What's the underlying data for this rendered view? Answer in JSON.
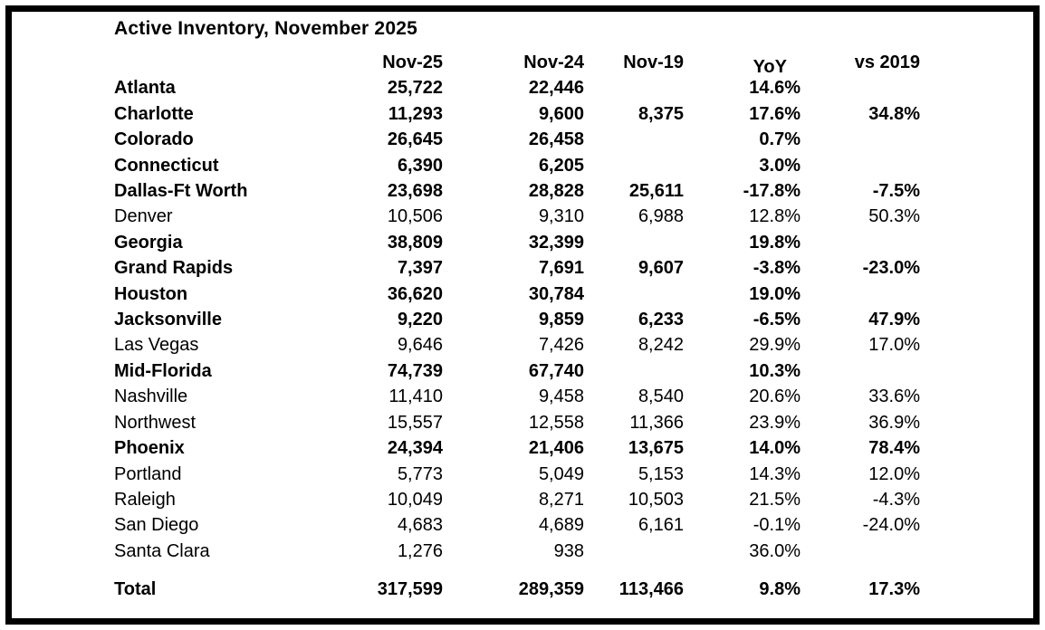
{
  "title": "Active Inventory, November 2025",
  "colors": {
    "text": "#000000",
    "background": "#ffffff",
    "frame_border": "#000000"
  },
  "chart_data": {
    "type": "table",
    "title": "Active Inventory, November 2025",
    "columns": [
      "",
      "Nov-25",
      "Nov-24",
      "Nov-19",
      "YoY",
      "vs 2019"
    ],
    "layout": {
      "grid": "off",
      "value_alignment": "right",
      "frame": "thick black box border"
    },
    "rows": [
      {
        "label": "Atlanta",
        "values": [
          "25,722",
          "22,446",
          "",
          "14.6%",
          ""
        ],
        "bold": true,
        "is_total": false
      },
      {
        "label": "Charlotte",
        "values": [
          "11,293",
          "9,600",
          "8,375",
          "17.6%",
          "34.8%"
        ],
        "bold": true,
        "is_total": false
      },
      {
        "label": "Colorado",
        "values": [
          "26,645",
          "26,458",
          "",
          "0.7%",
          ""
        ],
        "bold": true,
        "is_total": false
      },
      {
        "label": "Connecticut",
        "values": [
          "6,390",
          "6,205",
          "",
          "3.0%",
          ""
        ],
        "bold": true,
        "is_total": false
      },
      {
        "label": "Dallas-Ft Worth",
        "values": [
          "23,698",
          "28,828",
          "25,611",
          "-17.8%",
          "-7.5%"
        ],
        "bold": true,
        "is_total": false
      },
      {
        "label": "Denver",
        "values": [
          "10,506",
          "9,310",
          "6,988",
          "12.8%",
          "50.3%"
        ],
        "bold": false,
        "is_total": false
      },
      {
        "label": "Georgia",
        "values": [
          "38,809",
          "32,399",
          "",
          "19.8%",
          ""
        ],
        "bold": true,
        "is_total": false
      },
      {
        "label": "Grand Rapids",
        "values": [
          "7,397",
          "7,691",
          "9,607",
          "-3.8%",
          "-23.0%"
        ],
        "bold": true,
        "is_total": false
      },
      {
        "label": "Houston",
        "values": [
          "36,620",
          "30,784",
          "",
          "19.0%",
          ""
        ],
        "bold": true,
        "is_total": false
      },
      {
        "label": "Jacksonville",
        "values": [
          "9,220",
          "9,859",
          "6,233",
          "-6.5%",
          "47.9%"
        ],
        "bold": true,
        "is_total": false
      },
      {
        "label": "Las Vegas",
        "values": [
          "9,646",
          "7,426",
          "8,242",
          "29.9%",
          "17.0%"
        ],
        "bold": false,
        "is_total": false
      },
      {
        "label": "Mid-Florida",
        "values": [
          "74,739",
          "67,740",
          "",
          "10.3%",
          ""
        ],
        "bold": true,
        "is_total": false
      },
      {
        "label": "Nashville",
        "values": [
          "11,410",
          "9,458",
          "8,540",
          "20.6%",
          "33.6%"
        ],
        "bold": false,
        "is_total": false
      },
      {
        "label": "Northwest",
        "values": [
          "15,557",
          "12,558",
          "11,366",
          "23.9%",
          "36.9%"
        ],
        "bold": false,
        "is_total": false
      },
      {
        "label": "Phoenix",
        "values": [
          "24,394",
          "21,406",
          "13,675",
          "14.0%",
          "78.4%"
        ],
        "bold": true,
        "is_total": false
      },
      {
        "label": "Portland",
        "values": [
          "5,773",
          "5,049",
          "5,153",
          "14.3%",
          "12.0%"
        ],
        "bold": false,
        "is_total": false
      },
      {
        "label": "Raleigh",
        "values": [
          "10,049",
          "8,271",
          "10,503",
          "21.5%",
          "-4.3%"
        ],
        "bold": false,
        "is_total": false
      },
      {
        "label": "San Diego",
        "values": [
          "4,683",
          "4,689",
          "6,161",
          "-0.1%",
          "-24.0%"
        ],
        "bold": false,
        "is_total": false
      },
      {
        "label": "Santa Clara",
        "values": [
          "1,276",
          "938",
          "",
          "36.0%",
          ""
        ],
        "bold": false,
        "is_total": false
      },
      {
        "label": "Total",
        "values": [
          "317,599",
          "289,359",
          "113,466",
          "9.8%",
          "17.3%"
        ],
        "bold": true,
        "is_total": true
      }
    ]
  }
}
